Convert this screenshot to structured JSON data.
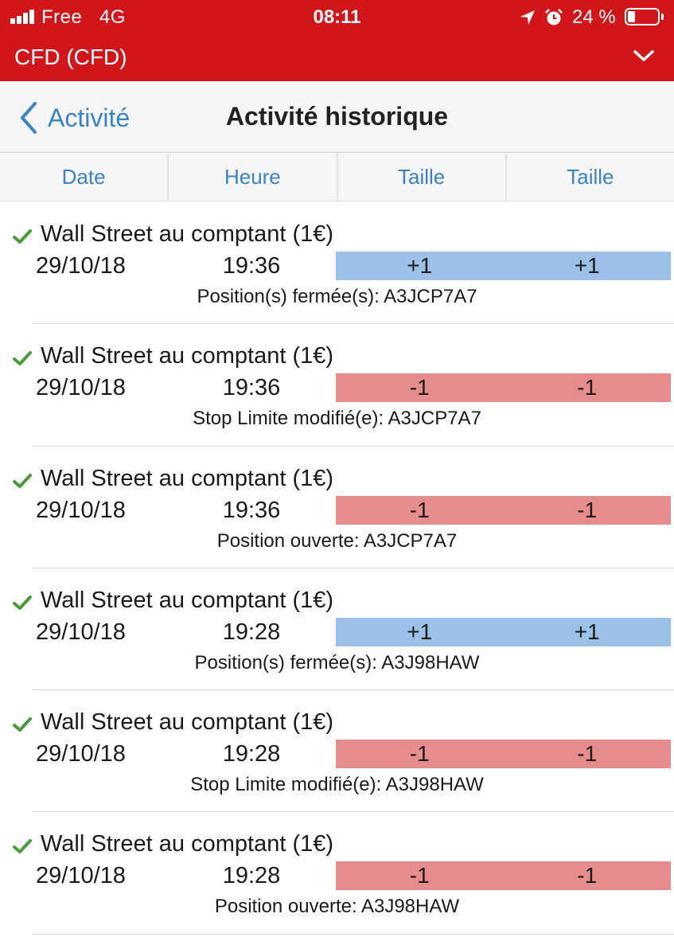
{
  "status_bar": {
    "carrier": "Free",
    "network": "4G",
    "time": "08:11",
    "battery_text": "24 %",
    "battery_level": 0.24
  },
  "account": {
    "title": "CFD (CFD)"
  },
  "nav": {
    "back_label": "Activité",
    "title": "Activité historique"
  },
  "columns": [
    "Date",
    "Heure",
    "Taille",
    "Taille"
  ],
  "colors": {
    "header_red": "#d0161b",
    "link_blue": "#3b82c4",
    "buy_blue": "#9cc1e6",
    "sell_red": "#e68c8c",
    "check_green": "#4a9a3a"
  },
  "rows": [
    {
      "name": "Wall Street au comptant (1€)",
      "date": "29/10/18",
      "time": "19:36",
      "size1": "+1",
      "size2": "+1",
      "direction": "buy",
      "description": "Position(s) fermée(s): A3JCP7A7"
    },
    {
      "name": "Wall Street au comptant (1€)",
      "date": "29/10/18",
      "time": "19:36",
      "size1": "-1",
      "size2": "-1",
      "direction": "sell",
      "description": "Stop Limite modifié(e): A3JCP7A7"
    },
    {
      "name": "Wall Street au comptant (1€)",
      "date": "29/10/18",
      "time": "19:36",
      "size1": "-1",
      "size2": "-1",
      "direction": "sell",
      "description": "Position ouverte: A3JCP7A7"
    },
    {
      "name": "Wall Street au comptant (1€)",
      "date": "29/10/18",
      "time": "19:28",
      "size1": "+1",
      "size2": "+1",
      "direction": "buy",
      "description": "Position(s) fermée(s): A3J98HAW"
    },
    {
      "name": "Wall Street au comptant (1€)",
      "date": "29/10/18",
      "time": "19:28",
      "size1": "-1",
      "size2": "-1",
      "direction": "sell",
      "description": "Stop Limite modifié(e): A3J98HAW"
    },
    {
      "name": "Wall Street au comptant (1€)",
      "date": "29/10/18",
      "time": "19:28",
      "size1": "-1",
      "size2": "-1",
      "direction": "sell",
      "description": "Position ouverte: A3J98HAW"
    }
  ]
}
